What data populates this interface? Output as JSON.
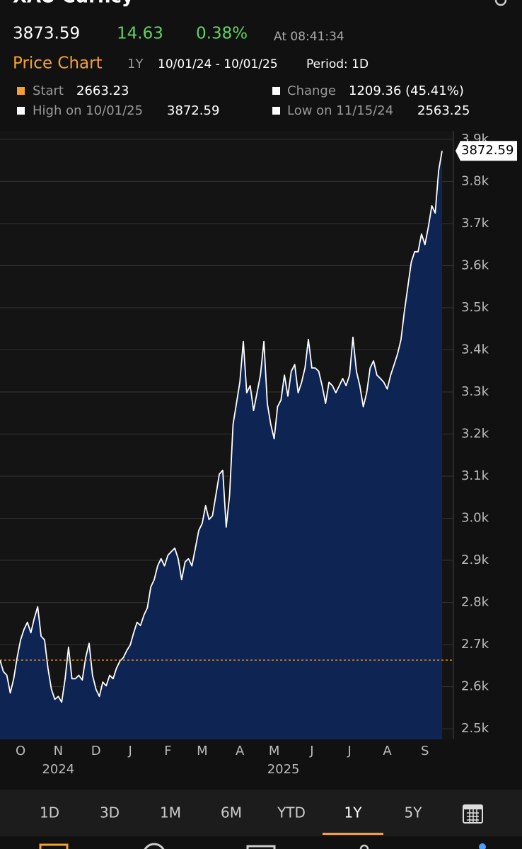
{
  "header": {
    "title": "XAU Curncy",
    "price": "3873.59",
    "change": "14.63",
    "change_pct": "0.38%",
    "time": "At 08:41:34"
  },
  "chart_header": {
    "title": "Price Chart",
    "range": "1Y",
    "dates": "10/01/24 - 10/01/25",
    "period": "Period: 1D"
  },
  "stats": {
    "start_label": "Start",
    "change_label": "Change",
    "change_value": "1209.36 (45.41%)",
    "high_label": "High on 10/01/25",
    "high_value": "3872.59",
    "low_label": "Low on 11/15/24",
    "low_value": "2563.25"
  },
  "tabs": [
    "1D",
    "3D",
    "1M",
    "6M",
    "YTD",
    "1Y",
    "5Y"
  ],
  "selected_tab": 5,
  "chart_data": {
    "type": "area",
    "start": 2663.23,
    "categories": [
      null,
      null,
      null,
      null,
      null,
      null,
      "O",
      null,
      null,
      null,
      null,
      null,
      null,
      null,
      null,
      null,
      null,
      "N",
      null,
      null,
      null,
      null,
      null,
      null,
      null,
      null,
      null,
      null,
      "D",
      null,
      null,
      null,
      null,
      null,
      null,
      null,
      null,
      null,
      "J",
      null,
      null,
      null,
      null,
      null,
      null,
      null,
      null,
      null,
      null,
      "F",
      null,
      null,
      null,
      null,
      null,
      null,
      null,
      null,
      null,
      "M",
      null,
      null,
      null,
      null,
      null,
      null,
      null,
      null,
      null,
      null,
      "A",
      null,
      null,
      null,
      null,
      null,
      null,
      null,
      null,
      null,
      "M",
      null,
      null,
      null,
      null,
      null,
      null,
      null,
      null,
      null,
      null,
      "J",
      null,
      null,
      null,
      null,
      null,
      null,
      null,
      null,
      null,
      null,
      "J",
      null,
      null,
      null,
      null,
      null,
      null,
      null,
      null,
      null,
      null,
      "A",
      null,
      null,
      null,
      null,
      null,
      null,
      null,
      null,
      null,
      null,
      "S",
      null,
      null,
      null,
      null,
      null
    ],
    "year_labels": [
      "2024",
      "2025"
    ],
    "series": [
      {
        "color": "#ffffff",
        "values": [
          2663.23,
          2636,
          2627,
          2585,
          2619,
          2669,
          2711,
          2736,
          2753,
          2728,
          2762,
          2790,
          2720,
          2711,
          2644,
          2594,
          2570,
          2577,
          2563.25,
          2619,
          2694,
          2619,
          2619,
          2627,
          2616,
          2669,
          2703,
          2627,
          2594,
          2577,
          2611,
          2602,
          2627,
          2619,
          2644,
          2661,
          2669,
          2686,
          2699,
          2728,
          2753,
          2745,
          2770,
          2787,
          2837,
          2854,
          2887,
          2904,
          2887,
          2912,
          2921,
          2929,
          2904,
          2854,
          2896,
          2904,
          2887,
          2929,
          2971,
          2988,
          3030,
          2997,
          3006,
          3055,
          3105,
          3114,
          2979,
          3055,
          3223,
          3273,
          3323,
          3420,
          3298,
          3315,
          3256,
          3298,
          3340,
          3420,
          3273,
          3223,
          3189,
          3265,
          3281,
          3340,
          3290,
          3349,
          3365,
          3298,
          3323,
          3357,
          3425,
          3357,
          3357,
          3349,
          3315,
          3273,
          3323,
          3315,
          3298,
          3315,
          3332,
          3315,
          3340,
          3430,
          3349,
          3315,
          3265,
          3298,
          3357,
          3374,
          3340,
          3332,
          3323,
          3307,
          3340,
          3365,
          3390,
          3424,
          3491,
          3550,
          3608,
          3633,
          3633,
          3675,
          3650,
          3692,
          3742,
          3725,
          3826,
          3872.59
        ]
      }
    ],
    "area_color": "#0e2452",
    "ylim": [
      2475,
      3920
    ],
    "yticks": [
      {
        "value": 2500,
        "label": "2.5k"
      },
      {
        "value": 2600,
        "label": "2.6k"
      },
      {
        "value": 2700,
        "label": "2.7k"
      },
      {
        "value": 2800,
        "label": "2.8k"
      },
      {
        "value": 2900,
        "label": "2.9k"
      },
      {
        "value": 3000,
        "label": "3.0k"
      },
      {
        "value": 3100,
        "label": "3.1k"
      },
      {
        "value": 3200,
        "label": "3.2k"
      },
      {
        "value": 3300,
        "label": "3.3k"
      },
      {
        "value": 3400,
        "label": "3.4k"
      },
      {
        "value": 3500,
        "label": "3.5k"
      },
      {
        "value": 3600,
        "label": "3.6k"
      },
      {
        "value": 3700,
        "label": "3.7k"
      },
      {
        "value": 3800,
        "label": "3.8k"
      },
      {
        "value": 3900,
        "label": "3.9k"
      }
    ],
    "grid": true
  }
}
